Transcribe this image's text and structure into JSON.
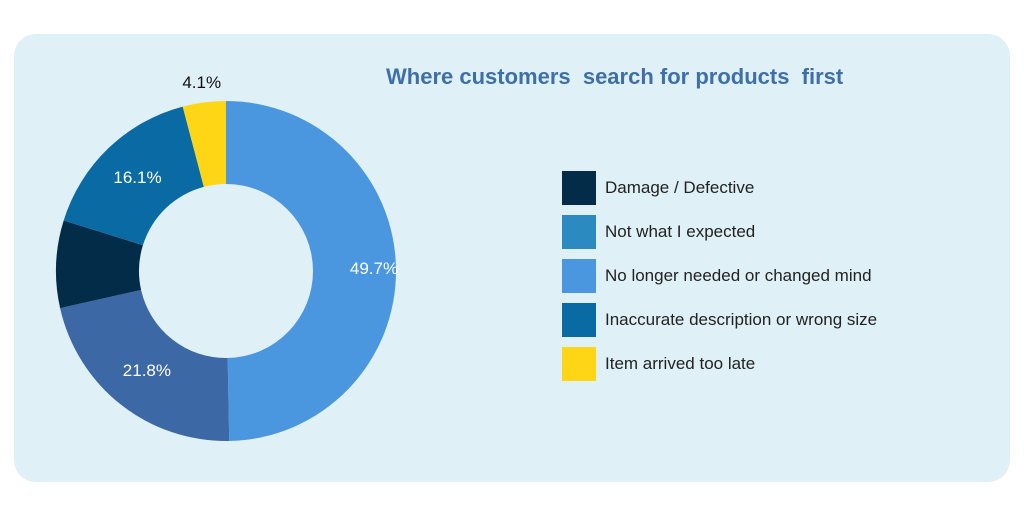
{
  "chart_data": {
    "type": "pie",
    "title": "Where customers  search for products  first",
    "legend_position": "right",
    "slices": [
      {
        "label": "No longer needed or changed mind",
        "value": 49.7,
        "value_label": "49.7%",
        "color": "#4a97e0",
        "label_color": "#ffffff"
      },
      {
        "label": "",
        "value": 21.8,
        "value_label": "21.8%",
        "color": "#3c68a6",
        "label_color": "#ffffff"
      },
      {
        "label": "Damage / Defective",
        "value": 8.3,
        "value_label": "",
        "color": "#032c48",
        "label_color": "#ffffff"
      },
      {
        "label": "Inaccurate description or wrong size",
        "value": 16.1,
        "value_label": "16.1%",
        "color": "#0a6aa3",
        "label_color": "#ffffff"
      },
      {
        "label": "Item arrived too late",
        "value": 4.1,
        "value_label": "4.1%",
        "color": "#ffd615",
        "label_color": "#111111"
      }
    ],
    "legend": [
      {
        "label": "Damage / Defective",
        "color": "#032c48"
      },
      {
        "label": "Not what I expected",
        "color": "#2b8ac0"
      },
      {
        "label": "No longer needed or changed mind",
        "color": "#4a97e0"
      },
      {
        "label": "Inaccurate description or wrong size",
        "color": "#0a6aa3"
      },
      {
        "label": "Item arrived too late",
        "color": "#ffd615"
      }
    ]
  }
}
